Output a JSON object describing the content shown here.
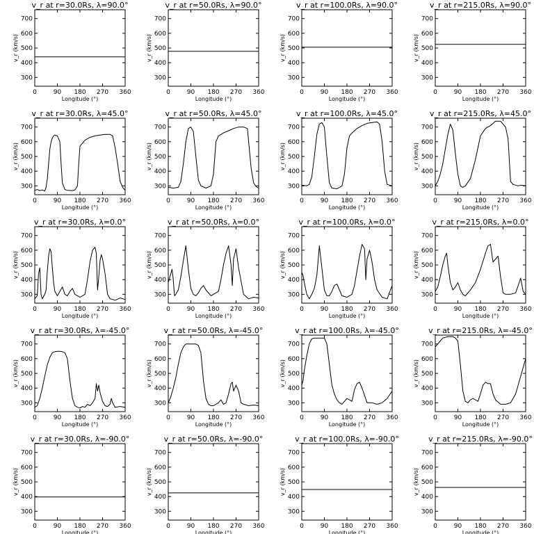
{
  "page": {
    "x_axis_label": "Longitude (°)",
    "y_axis_label": "v<sub>r</sub> (km/s)",
    "x_ticks": [
      0,
      90,
      180,
      270,
      360
    ],
    "y_ticks": [
      300,
      400,
      500,
      600,
      700
    ]
  },
  "chart_data": [
    {
      "type": "line",
      "title": "v_r at r=30.0Rs, λ=90.0°",
      "xlabel": "Longitude (°)",
      "ylabel": "v_r (km/s)",
      "xlim": [
        0,
        360
      ],
      "ylim": [
        240,
        760
      ],
      "x": [
        0,
        360
      ],
      "series": [
        {
          "values": [
            440,
            440
          ]
        }
      ]
    },
    {
      "type": "line",
      "title": "v_r at r=50.0Rs, λ=90.0°",
      "xlabel": "Longitude (°)",
      "ylabel": "v_r (km/s)",
      "xlim": [
        0,
        360
      ],
      "ylim": [
        240,
        760
      ],
      "x": [
        0,
        360
      ],
      "series": [
        {
          "values": [
            478,
            478
          ]
        }
      ]
    },
    {
      "type": "line",
      "title": "v_r at r=100.0Rs, λ=90.0°",
      "xlabel": "Longitude (°)",
      "ylabel": "v_r (km/s)",
      "xlim": [
        0,
        360
      ],
      "ylim": [
        240,
        760
      ],
      "x": [
        0,
        360
      ],
      "series": [
        {
          "values": [
            505,
            505
          ]
        }
      ]
    },
    {
      "type": "line",
      "title": "v_r at r=215.0Rs, λ=90.0°",
      "xlabel": "Longitude (°)",
      "ylabel": "v_r (km/s)",
      "xlim": [
        0,
        360
      ],
      "ylim": [
        240,
        760
      ],
      "x": [
        0,
        360
      ],
      "series": [
        {
          "values": [
            525,
            525
          ]
        }
      ]
    },
    {
      "type": "line",
      "title": "v_r at r=30.0Rs, λ=45.0°",
      "xlabel": "Longitude (°)",
      "ylabel": "v_r (km/s)",
      "xlim": [
        0,
        360
      ],
      "ylim": [
        240,
        760
      ],
      "x": [
        0,
        10,
        20,
        30,
        40,
        45,
        50,
        55,
        60,
        65,
        70,
        75,
        80,
        90,
        100,
        105,
        110,
        120,
        130,
        150,
        160,
        170,
        175,
        180,
        190,
        200,
        210,
        220,
        240,
        260,
        270,
        280,
        300,
        310,
        320,
        330,
        340,
        350,
        360
      ],
      "series": [
        {
          "values": [
            270,
            275,
            268,
            272,
            265,
            290,
            350,
            450,
            550,
            600,
            625,
            640,
            645,
            640,
            600,
            450,
            320,
            275,
            270,
            268,
            272,
            300,
            450,
            570,
            590,
            610,
            620,
            630,
            640,
            645,
            648,
            650,
            650,
            640,
            560,
            450,
            330,
            290,
            270
          ]
        }
      ]
    },
    {
      "type": "line",
      "title": "v_r at r=50.0Rs, λ=45.0°",
      "xlabel": "Longitude (°)",
      "ylabel": "v_r (km/s)",
      "xlim": [
        0,
        360
      ],
      "ylim": [
        240,
        760
      ],
      "x": [
        0,
        20,
        40,
        50,
        60,
        70,
        80,
        90,
        100,
        110,
        120,
        130,
        150,
        170,
        180,
        190,
        200,
        210,
        220,
        240,
        260,
        280,
        300,
        315,
        320,
        330,
        340,
        350,
        360
      ],
      "series": [
        {
          "values": [
            290,
            285,
            290,
            330,
            450,
            600,
            690,
            700,
            670,
            500,
            340,
            300,
            285,
            300,
            380,
            600,
            640,
            650,
            660,
            675,
            690,
            700,
            700,
            690,
            600,
            420,
            320,
            295,
            285
          ]
        }
      ]
    },
    {
      "type": "line",
      "title": "v_r at r=100.0Rs, λ=45.0°",
      "xlabel": "Longitude (°)",
      "ylabel": "v_r (km/s)",
      "xlim": [
        0,
        360
      ],
      "ylim": [
        240,
        760
      ],
      "x": [
        0,
        20,
        30,
        40,
        50,
        60,
        70,
        80,
        90,
        100,
        110,
        120,
        140,
        160,
        170,
        180,
        190,
        200,
        220,
        240,
        260,
        280,
        300,
        310,
        320,
        330,
        340,
        360
      ],
      "series": [
        {
          "values": [
            305,
            300,
            310,
            360,
            500,
            650,
            720,
            730,
            700,
            500,
            320,
            285,
            280,
            300,
            380,
            560,
            640,
            660,
            690,
            710,
            725,
            730,
            735,
            720,
            600,
            400,
            310,
            300
          ]
        }
      ]
    },
    {
      "type": "line",
      "title": "v_r at r=215.0Rs, λ=45.0°",
      "xlabel": "Longitude (°)",
      "ylabel": "v_r (km/s)",
      "xlim": [
        0,
        360
      ],
      "ylim": [
        240,
        760
      ],
      "x": [
        0,
        10,
        20,
        30,
        40,
        50,
        60,
        70,
        80,
        90,
        100,
        110,
        120,
        140,
        160,
        180,
        200,
        220,
        240,
        260,
        270,
        280,
        290,
        300,
        310,
        320,
        330,
        340,
        360
      ],
      "series": [
        {
          "values": [
            300,
            330,
            380,
            450,
            550,
            650,
            720,
            680,
            520,
            380,
            300,
            290,
            300,
            350,
            480,
            640,
            690,
            710,
            740,
            740,
            720,
            700,
            620,
            330,
            310,
            305,
            300,
            305,
            300
          ]
        }
      ]
    },
    {
      "type": "line",
      "title": "v_r at r=30.0Rs, λ=0.0°",
      "xlabel": "Longitude (°)",
      "ylabel": "v_r (km/s)",
      "xlim": [
        0,
        360
      ],
      "ylim": [
        240,
        760
      ],
      "x": [
        0,
        10,
        15,
        20,
        25,
        30,
        40,
        45,
        50,
        55,
        60,
        65,
        70,
        75,
        80,
        90,
        100,
        110,
        120,
        130,
        140,
        150,
        160,
        170,
        180,
        200,
        210,
        220,
        230,
        240,
        245,
        250,
        255,
        260,
        265,
        270,
        280,
        290,
        300,
        320,
        340,
        360
      ],
      "series": [
        {
          "values": [
            270,
            290,
            440,
            480,
            300,
            270,
            300,
            330,
            460,
            560,
            610,
            590,
            480,
            380,
            320,
            290,
            320,
            350,
            300,
            290,
            320,
            340,
            300,
            290,
            280,
            300,
            400,
            520,
            600,
            620,
            580,
            330,
            420,
            530,
            570,
            540,
            440,
            300,
            270,
            260,
            275,
            265
          ]
        }
      ]
    },
    {
      "type": "line",
      "title": "v_r at r=50.0Rs, λ=0.0°",
      "xlabel": "Longitude (°)",
      "ylabel": "v_r (km/s)",
      "xlim": [
        0,
        360
      ],
      "ylim": [
        240,
        760
      ],
      "x": [
        0,
        10,
        15,
        20,
        25,
        30,
        40,
        50,
        60,
        70,
        80,
        90,
        100,
        110,
        120,
        130,
        140,
        150,
        170,
        180,
        200,
        210,
        220,
        230,
        240,
        250,
        255,
        260,
        270,
        280,
        300,
        320,
        340,
        360
      ],
      "series": [
        {
          "values": [
            380,
            440,
            470,
            400,
            290,
            300,
            330,
            420,
            530,
            630,
            470,
            340,
            300,
            290,
            310,
            340,
            360,
            330,
            290,
            300,
            320,
            400,
            500,
            580,
            630,
            500,
            360,
            540,
            610,
            480,
            300,
            270,
            280,
            275
          ]
        }
      ]
    },
    {
      "type": "line",
      "title": "v_r at r=100.0Rs, λ=0.0°",
      "xlabel": "Longitude (°)",
      "ylabel": "v_r (km/s)",
      "xlim": [
        0,
        360
      ],
      "ylim": [
        240,
        760
      ],
      "x": [
        0,
        5,
        10,
        20,
        30,
        40,
        50,
        60,
        70,
        80,
        90,
        100,
        110,
        120,
        130,
        140,
        150,
        160,
        180,
        200,
        210,
        220,
        230,
        240,
        250,
        255,
        260,
        270,
        280,
        290,
        300,
        320,
        340,
        360
      ],
      "series": [
        {
          "values": [
            450,
            430,
            380,
            300,
            270,
            300,
            340,
            430,
            630,
            480,
            330,
            290,
            290,
            320,
            360,
            370,
            330,
            290,
            280,
            300,
            360,
            460,
            560,
            640,
            610,
            400,
            540,
            600,
            520,
            400,
            330,
            280,
            270,
            360
          ]
        }
      ]
    },
    {
      "type": "line",
      "title": "v_r at r=215.0Rs, λ=0.0°",
      "xlabel": "Longitude (°)",
      "ylabel": "v_r (km/s)",
      "xlim": [
        0,
        360
      ],
      "ylim": [
        240,
        760
      ],
      "x": [
        0,
        10,
        20,
        30,
        40,
        45,
        50,
        60,
        70,
        80,
        90,
        100,
        110,
        120,
        140,
        160,
        180,
        200,
        210,
        220,
        230,
        240,
        250,
        260,
        270,
        280,
        300,
        320,
        330,
        340,
        350,
        360
      ],
      "series": [
        {
          "values": [
            320,
            350,
            420,
            500,
            560,
            580,
            500,
            380,
            330,
            350,
            380,
            330,
            300,
            290,
            330,
            380,
            470,
            580,
            630,
            640,
            520,
            540,
            560,
            420,
            310,
            300,
            300,
            310,
            360,
            410,
            320,
            300
          ]
        }
      ]
    },
    {
      "type": "line",
      "title": "v_r at r=30.0Rs, λ=-45.0°",
      "xlabel": "Longitude (°)",
      "ylabel": "v_r (km/s)",
      "xlim": [
        0,
        360
      ],
      "ylim": [
        240,
        760
      ],
      "x": [
        0,
        10,
        20,
        30,
        40,
        50,
        60,
        70,
        80,
        90,
        100,
        110,
        120,
        130,
        140,
        150,
        160,
        170,
        180,
        190,
        200,
        210,
        220,
        230,
        240,
        245,
        250,
        255,
        260,
        270,
        280,
        290,
        300,
        305,
        310,
        320,
        340,
        360
      ],
      "series": [
        {
          "values": [
            270,
            280,
            330,
            400,
            480,
            560,
            610,
            640,
            648,
            650,
            650,
            648,
            640,
            600,
            450,
            330,
            280,
            270,
            265,
            275,
            270,
            290,
            280,
            300,
            330,
            430,
            380,
            420,
            370,
            310,
            280,
            275,
            290,
            330,
            300,
            270,
            275,
            270
          ]
        }
      ]
    },
    {
      "type": "line",
      "title": "v_r at r=50.0Rs, λ=-45.0°",
      "xlabel": "Longitude (°)",
      "ylabel": "v_r (km/s)",
      "xlim": [
        0,
        360
      ],
      "ylim": [
        240,
        760
      ],
      "x": [
        0,
        10,
        20,
        30,
        40,
        50,
        60,
        70,
        80,
        90,
        100,
        110,
        120,
        130,
        140,
        150,
        160,
        170,
        180,
        200,
        210,
        220,
        230,
        240,
        250,
        255,
        260,
        270,
        280,
        290,
        300,
        320,
        340,
        360
      ],
      "series": [
        {
          "values": [
            300,
            340,
            400,
            470,
            560,
            640,
            680,
            700,
            700,
            700,
            700,
            700,
            690,
            640,
            450,
            330,
            290,
            280,
            280,
            300,
            320,
            290,
            300,
            360,
            430,
            440,
            380,
            420,
            380,
            300,
            290,
            280,
            285,
            280
          ]
        }
      ]
    },
    {
      "type": "line",
      "title": "v_r at r=100.0Rs, λ=-45.0°",
      "xlabel": "Longitude (°)",
      "ylabel": "v_r (km/s)",
      "xlim": [
        0,
        360
      ],
      "ylim": [
        240,
        760
      ],
      "x": [
        0,
        5,
        10,
        20,
        30,
        40,
        50,
        60,
        70,
        80,
        90,
        100,
        110,
        120,
        130,
        140,
        150,
        160,
        170,
        180,
        190,
        200,
        210,
        220,
        230,
        240,
        250,
        260,
        280,
        300,
        320,
        340,
        360
      ],
      "series": [
        {
          "values": [
            420,
            450,
            520,
            620,
            700,
            735,
            740,
            740,
            740,
            740,
            740,
            700,
            560,
            420,
            360,
            320,
            300,
            290,
            310,
            330,
            320,
            310,
            390,
            430,
            440,
            400,
            350,
            300,
            300,
            290,
            300,
            330,
            380
          ]
        }
      ]
    },
    {
      "type": "line",
      "title": "v_r at r=215.0Rs, λ=-45.0°",
      "xlabel": "Longitude (°)",
      "ylabel": "v_r (km/s)",
      "xlim": [
        0,
        360
      ],
      "ylim": [
        240,
        760
      ],
      "x": [
        0,
        10,
        20,
        30,
        40,
        50,
        60,
        70,
        80,
        90,
        100,
        110,
        120,
        130,
        140,
        150,
        160,
        170,
        180,
        190,
        200,
        210,
        220,
        230,
        240,
        260,
        280,
        300,
        320,
        340,
        360
      ],
      "series": [
        {
          "values": [
            680,
            700,
            720,
            740,
            745,
            750,
            750,
            750,
            740,
            720,
            560,
            380,
            310,
            300,
            320,
            330,
            320,
            310,
            360,
            420,
            440,
            430,
            430,
            360,
            320,
            290,
            290,
            300,
            360,
            480,
            600
          ]
        }
      ]
    },
    {
      "type": "line",
      "title": "v_r at r=30.0Rs, λ=-90.0°",
      "xlabel": "Longitude (°)",
      "ylabel": "v_r (km/s)",
      "xlim": [
        0,
        360
      ],
      "ylim": [
        240,
        760
      ],
      "x": [
        0,
        360
      ],
      "series": [
        {
          "values": [
            397,
            397
          ]
        }
      ]
    },
    {
      "type": "line",
      "title": "v_r at r=50.0Rs, λ=-90.0°",
      "xlabel": "Longitude (°)",
      "ylabel": "v_r (km/s)",
      "xlim": [
        0,
        360
      ],
      "ylim": [
        240,
        760
      ],
      "x": [
        0,
        360
      ],
      "series": [
        {
          "values": [
            425,
            425
          ]
        }
      ]
    },
    {
      "type": "line",
      "title": "v_r at r=100.0Rs, λ=-90.0°",
      "xlabel": "Longitude (°)",
      "ylabel": "v_r (km/s)",
      "xlim": [
        0,
        360
      ],
      "ylim": [
        240,
        760
      ],
      "x": [
        0,
        360
      ],
      "series": [
        {
          "values": [
            448,
            448
          ]
        }
      ]
    },
    {
      "type": "line",
      "title": "v_r at r=215.0Rs, λ=-90.0°",
      "xlabel": "Longitude (°)",
      "ylabel": "v_r (km/s)",
      "xlim": [
        0,
        360
      ],
      "ylim": [
        240,
        760
      ],
      "x": [
        0,
        360
      ],
      "series": [
        {
          "values": [
            462,
            462
          ]
        }
      ]
    }
  ]
}
